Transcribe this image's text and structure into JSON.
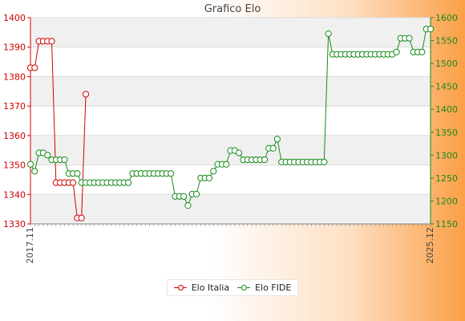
{
  "chart_data": {
    "type": "line",
    "title": "Grafico Elo",
    "xlabel": "",
    "ylabel": "",
    "grid": true,
    "legend_position": "bottom",
    "x_tick_labels_visible": [
      "2017.11",
      "2025.12"
    ],
    "left_axis": {
      "ylim": [
        1330,
        1400
      ],
      "ticks": [
        1330,
        1340,
        1350,
        1360,
        1370,
        1380,
        1390,
        1400
      ],
      "color": "#d00000"
    },
    "right_axis": {
      "ylim": [
        1150,
        1600
      ],
      "ticks": [
        1150,
        1200,
        1250,
        1300,
        1350,
        1400,
        1450,
        1500,
        1550,
        1600
      ],
      "color": "#1a8a1a"
    },
    "series": [
      {
        "name": "Elo Italia",
        "axis": "left",
        "color": "#d00000",
        "values": [
          1383,
          1383,
          1392,
          1392,
          1392,
          1392,
          1344,
          1344,
          1344,
          1344,
          1344,
          1332,
          1332,
          1374
        ]
      },
      {
        "name": "Elo FIDE",
        "axis": "right",
        "color": "#1a8a1a",
        "values": [
          1280,
          1265,
          1305,
          1305,
          1300,
          1290,
          1290,
          1290,
          1290,
          1260,
          1260,
          1260,
          1240,
          1240,
          1240,
          1240,
          1240,
          1240,
          1240,
          1240,
          1240,
          1240,
          1240,
          1240,
          1260,
          1260,
          1260,
          1260,
          1260,
          1260,
          1260,
          1260,
          1260,
          1260,
          1210,
          1210,
          1210,
          1190,
          1215,
          1215,
          1250,
          1250,
          1250,
          1265,
          1280,
          1280,
          1280,
          1310,
          1310,
          1305,
          1290,
          1290,
          1290,
          1290,
          1290,
          1290,
          1315,
          1315,
          1335,
          1285,
          1285,
          1285,
          1285,
          1285,
          1285,
          1285,
          1285,
          1285,
          1285,
          1285,
          1565,
          1520,
          1520,
          1520,
          1520,
          1520,
          1520,
          1520,
          1520,
          1520,
          1520,
          1520,
          1520,
          1520,
          1520,
          1520,
          1525,
          1555,
          1555,
          1555,
          1525,
          1525,
          1525,
          1575,
          1575
        ]
      }
    ]
  }
}
